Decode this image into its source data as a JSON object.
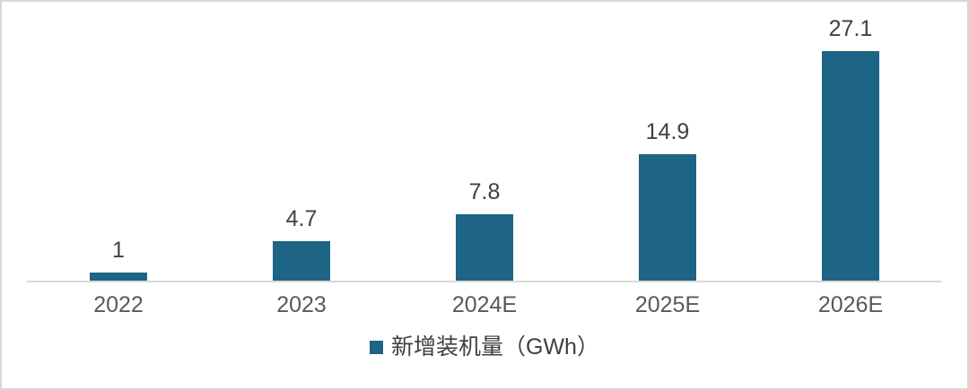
{
  "chart_data": {
    "type": "bar",
    "categories": [
      "2022",
      "2023",
      "2024E",
      "2025E",
      "2026E"
    ],
    "values": [
      1,
      4.7,
      7.8,
      14.9,
      27.1
    ],
    "value_labels": [
      "1",
      "4.7",
      "7.8",
      "14.9",
      "27.1"
    ],
    "title": "",
    "xlabel": "",
    "ylabel": "",
    "ylim": [
      0,
      27.1
    ],
    "grid": false,
    "legend_position": "bottom",
    "legend": [
      {
        "label": "新增装机量（GWh）",
        "color": "#1e6484"
      }
    ],
    "bar_color": "#1e6484"
  },
  "colors": {
    "bar": "#1e6484",
    "axis_line": "#d9d9d9",
    "frame_border": "#d7d7d7",
    "value_label_text": "#404040",
    "tick_label_text": "#595959",
    "legend_text": "#3f3f3f",
    "background": "#ffffff"
  }
}
